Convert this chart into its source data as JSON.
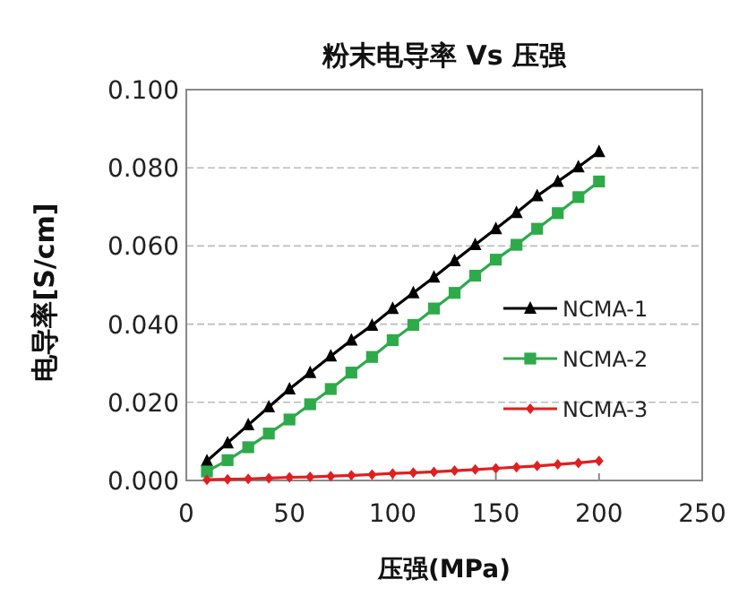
{
  "chart_data": {
    "type": "line",
    "title": "粉末电导率 Vs 压强",
    "xlabel": "压强(MPa)",
    "ylabel": "电导率[S/cm]",
    "x": [
      10,
      20,
      30,
      40,
      50,
      60,
      70,
      80,
      90,
      100,
      110,
      120,
      130,
      140,
      150,
      160,
      170,
      180,
      190,
      200
    ],
    "series": [
      {
        "name": "NCMA-1",
        "color": "#000000",
        "marker": "triangle",
        "values": [
          0.005,
          0.0096,
          0.0142,
          0.0188,
          0.0234,
          0.0276,
          0.0318,
          0.0359,
          0.0397,
          0.044,
          0.048,
          0.052,
          0.0562,
          0.0603,
          0.0644,
          0.0685,
          0.0728,
          0.0765,
          0.0802,
          0.0841
        ]
      },
      {
        "name": "NCMA-2",
        "color": "#2eaa4a",
        "marker": "square",
        "values": [
          0.0023,
          0.0052,
          0.0085,
          0.012,
          0.0156,
          0.0195,
          0.0234,
          0.0276,
          0.0316,
          0.0359,
          0.0398,
          0.044,
          0.048,
          0.0524,
          0.0565,
          0.0603,
          0.0644,
          0.0684,
          0.0725,
          0.0765
        ]
      },
      {
        "name": "NCMA-3",
        "color": "#e02020",
        "marker": "diamond",
        "values": [
          0.0002,
          0.0003,
          0.0004,
          0.0006,
          0.0008,
          0.0009,
          0.0011,
          0.0013,
          0.0015,
          0.0018,
          0.002,
          0.0022,
          0.0025,
          0.0028,
          0.0031,
          0.0034,
          0.0037,
          0.0041,
          0.0045,
          0.005
        ]
      }
    ],
    "xlim": [
      0,
      250
    ],
    "xticks": [
      0,
      50,
      100,
      150,
      200,
      250
    ],
    "ylim": [
      0,
      0.1
    ],
    "yticks": [
      {
        "value": 0,
        "label": "0.000"
      },
      {
        "value": 0.02,
        "label": "0.020"
      },
      {
        "value": 0.04,
        "label": "0.040"
      },
      {
        "value": 0.06,
        "label": "0.060"
      },
      {
        "value": 0.08,
        "label": "0.080"
      },
      {
        "value": 0.1,
        "label": "0.100"
      }
    ],
    "grid": "y",
    "legend": "right",
    "line_style": "solid"
  }
}
